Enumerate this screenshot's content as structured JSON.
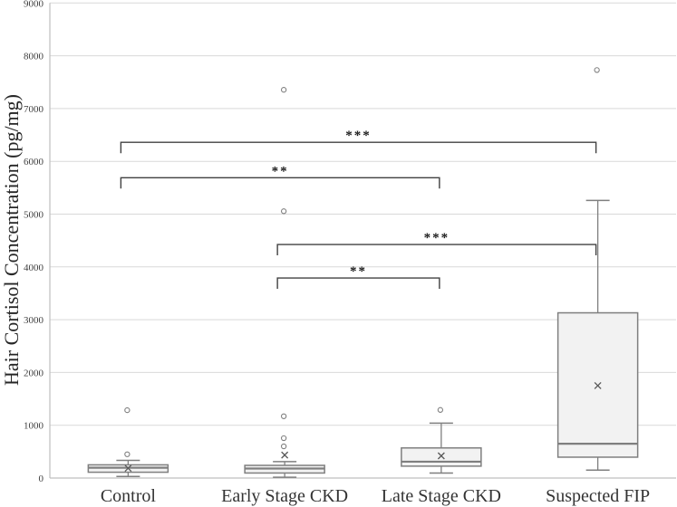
{
  "chart_data": {
    "type": "box",
    "title": "",
    "xlabel": "",
    "ylabel": "Hair Cortisol Concentration (pg/mg)",
    "ylim": [
      0,
      9000
    ],
    "y_ticks": [
      0,
      1000,
      2000,
      3000,
      4000,
      5000,
      6000,
      7000,
      8000,
      9000
    ],
    "y_tick_labels": [
      "0",
      "1000",
      "2000",
      "3000",
      "4000",
      "5000",
      "6000",
      "7000",
      "8000",
      "9000"
    ],
    "grid": "horizontal-light",
    "legend": "none",
    "categories": [
      "Control",
      "Early Stage CKD",
      "Late Stage CKD",
      "Suspected FIP"
    ],
    "series": [
      {
        "category": "Control",
        "whisker_low": 30,
        "q1": 110,
        "median": 195,
        "q3": 250,
        "whisker_high": 335,
        "mean": 185,
        "outliers": [
          450,
          1285
        ]
      },
      {
        "category": "Early Stage CKD",
        "whisker_low": 15,
        "q1": 95,
        "median": 180,
        "q3": 240,
        "whisker_high": 310,
        "mean": 435,
        "outliers": [
          600,
          755,
          1170,
          5055,
          7355
        ]
      },
      {
        "category": "Late Stage CKD",
        "whisker_low": 95,
        "q1": 225,
        "median": 310,
        "q3": 570,
        "whisker_high": 1040,
        "mean": 420,
        "outliers": [
          1290
        ]
      },
      {
        "category": "Suspected FIP",
        "whisker_low": 150,
        "q1": 395,
        "median": 650,
        "q3": 3130,
        "whisker_high": 5260,
        "mean": 1750,
        "outliers": [
          7730
        ]
      }
    ],
    "significance_brackets": [
      {
        "from": "Control",
        "to": "Suspected FIP",
        "label": "***",
        "y_value": 6360
      },
      {
        "from": "Control",
        "to": "Late Stage CKD",
        "label": "**",
        "y_value": 5690
      },
      {
        "from": "Early Stage CKD",
        "to": "Suspected FIP",
        "label": "***",
        "y_value": 4425
      },
      {
        "from": "Early Stage CKD",
        "to": "Late Stage CKD",
        "label": "**",
        "y_value": 3790
      }
    ],
    "colors": {
      "background": "#ffffff",
      "gridline": "#d9d9d9",
      "axis_line": "#bfbfbf",
      "box_fill": "#f2f2f2",
      "box_border": "#7f7f7f",
      "whisker": "#7f7f7f",
      "median_line": "#7f7f7f",
      "mean_marker": "#595959",
      "outlier": "#7f7f7f",
      "bracket": "#404040",
      "bracket_label": "#1a1a1a",
      "tick_text": "#404040",
      "category_text": "#333333"
    }
  }
}
